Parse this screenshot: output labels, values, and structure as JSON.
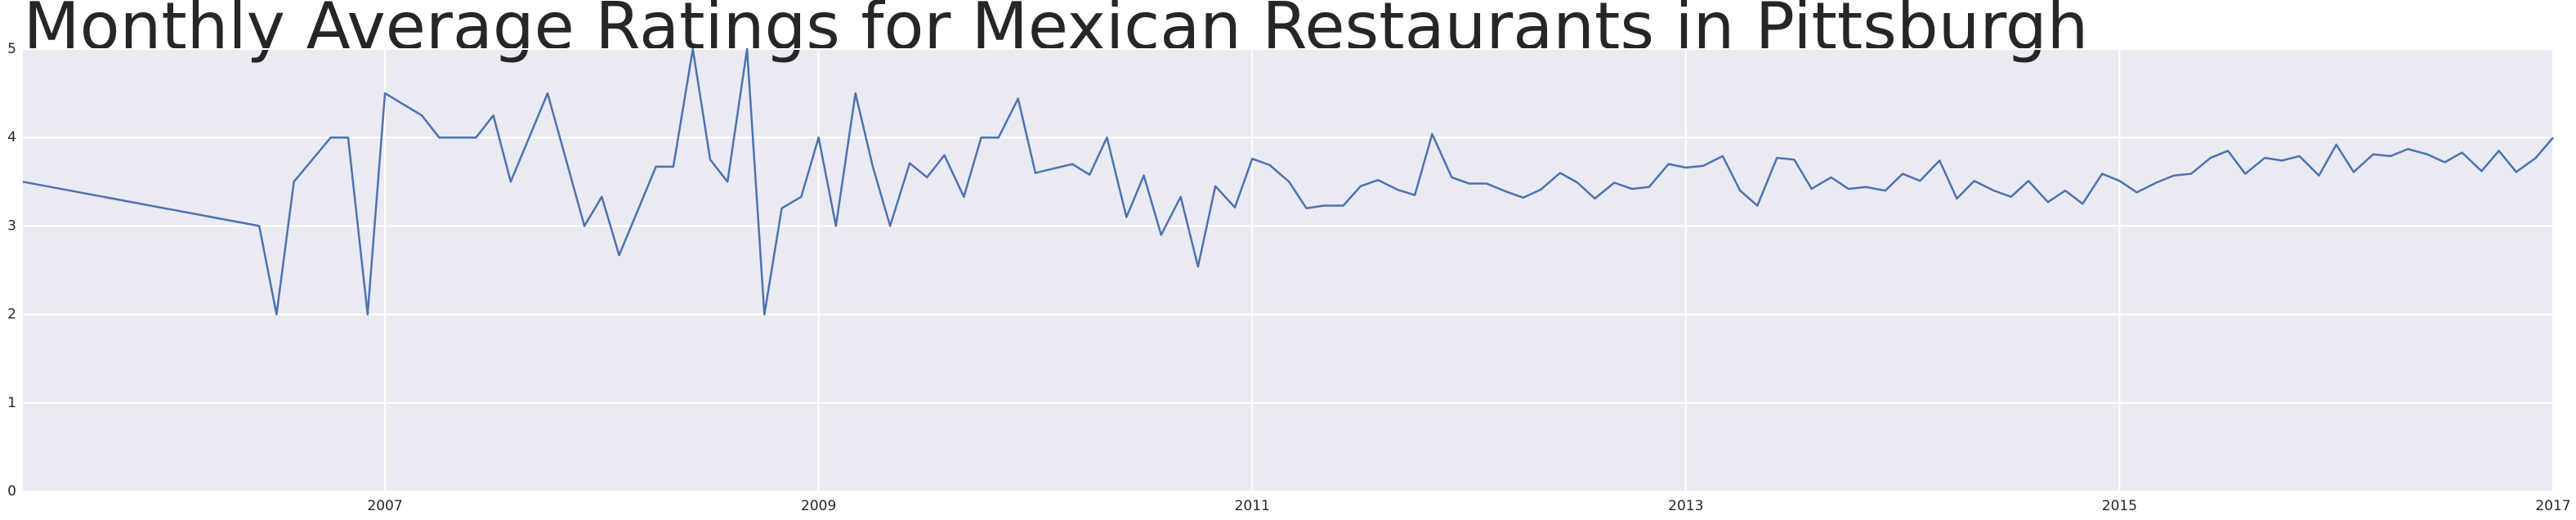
{
  "chart_data": {
    "type": "line",
    "title": "Monthly Average Ratings for Mexican Restaurants in Pittsburgh",
    "x": [
      2005.33,
      2006.42,
      2006.5,
      2006.58,
      2006.75,
      2006.83,
      2006.92,
      2007,
      2007.17,
      2007.25,
      2007.42,
      2007.5,
      2007.58,
      2007.75,
      2007.92,
      2008,
      2008.08,
      2008.25,
      2008.33,
      2008.42,
      2008.5,
      2008.58,
      2008.67,
      2008.75,
      2008.83,
      2008.92,
      2009,
      2009.08,
      2009.17,
      2009.25,
      2009.33,
      2009.42,
      2009.5,
      2009.58,
      2009.67,
      2009.75,
      2009.83,
      2009.92,
      2010,
      2010.17,
      2010.25,
      2010.33,
      2010.42,
      2010.5,
      2010.58,
      2010.67,
      2010.75,
      2010.83,
      2010.92,
      2011,
      2011.08,
      2011.17,
      2011.25,
      2011.33,
      2011.42,
      2011.5,
      2011.58,
      2011.67,
      2011.75,
      2011.83,
      2011.92,
      2012,
      2012.08,
      2012.17,
      2012.25,
      2012.33,
      2012.42,
      2012.5,
      2012.58,
      2012.67,
      2012.75,
      2012.83,
      2012.92,
      2013,
      2013.08,
      2013.17,
      2013.25,
      2013.33,
      2013.42,
      2013.5,
      2013.58,
      2013.67,
      2013.75,
      2013.83,
      2013.92,
      2014,
      2014.08,
      2014.17,
      2014.25,
      2014.33,
      2014.42,
      2014.5,
      2014.58,
      2014.67,
      2014.75,
      2014.83,
      2014.92,
      2015,
      2015.08,
      2015.17,
      2015.25,
      2015.33,
      2015.42,
      2015.5,
      2015.58,
      2015.67,
      2015.75,
      2015.83,
      2015.92,
      2016,
      2016.08,
      2016.17,
      2016.25,
      2016.33,
      2016.42,
      2016.5,
      2016.58,
      2016.67,
      2016.75,
      2016.83,
      2016.92,
      2017
    ],
    "series": [
      {
        "color": "#4c72b0",
        "values": [
          3.5,
          3.0,
          2.0,
          3.5,
          4.0,
          4.0,
          2.0,
          4.5,
          4.25,
          4.0,
          4.0,
          4.25,
          3.5,
          4.5,
          3.0,
          3.33,
          2.67,
          3.67,
          3.67,
          5.0,
          3.75,
          3.5,
          5.0,
          2.0,
          3.2,
          3.33,
          4.0,
          3.0,
          4.5,
          3.67,
          3.0,
          3.71,
          3.55,
          3.8,
          3.33,
          4.0,
          4.0,
          4.44,
          3.6,
          3.7,
          3.58,
          4.0,
          3.1,
          3.57,
          2.9,
          3.33,
          2.54,
          3.45,
          3.21,
          3.76,
          3.69,
          3.5,
          3.2,
          3.23,
          3.23,
          3.45,
          3.52,
          3.41,
          3.35,
          4.04,
          3.55,
          3.48,
          3.48,
          3.39,
          3.32,
          3.41,
          3.6,
          3.49,
          3.31,
          3.49,
          3.42,
          3.44,
          3.7,
          3.66,
          3.68,
          3.79,
          3.4,
          3.23,
          3.77,
          3.75,
          3.42,
          3.55,
          3.42,
          3.44,
          3.4,
          3.59,
          3.51,
          3.74,
          3.31,
          3.51,
          3.4,
          3.33,
          3.51,
          3.27,
          3.4,
          3.25,
          3.59,
          3.51,
          3.38,
          3.49,
          3.57,
          3.59,
          3.77,
          3.85,
          3.59,
          3.77,
          3.74,
          3.79,
          3.57,
          3.92,
          3.61,
          3.81,
          3.79,
          3.87,
          3.81,
          3.72,
          3.83,
          3.62,
          3.85,
          3.61,
          3.77,
          4.0
        ]
      }
    ],
    "xlim": [
      2005.33,
      2017
    ],
    "xticks": [
      2007,
      2009,
      2011,
      2013,
      2015,
      2017
    ],
    "ylim": [
      0,
      5
    ],
    "yticks": [
      0,
      1,
      2,
      3,
      4,
      5
    ],
    "grid": true
  }
}
